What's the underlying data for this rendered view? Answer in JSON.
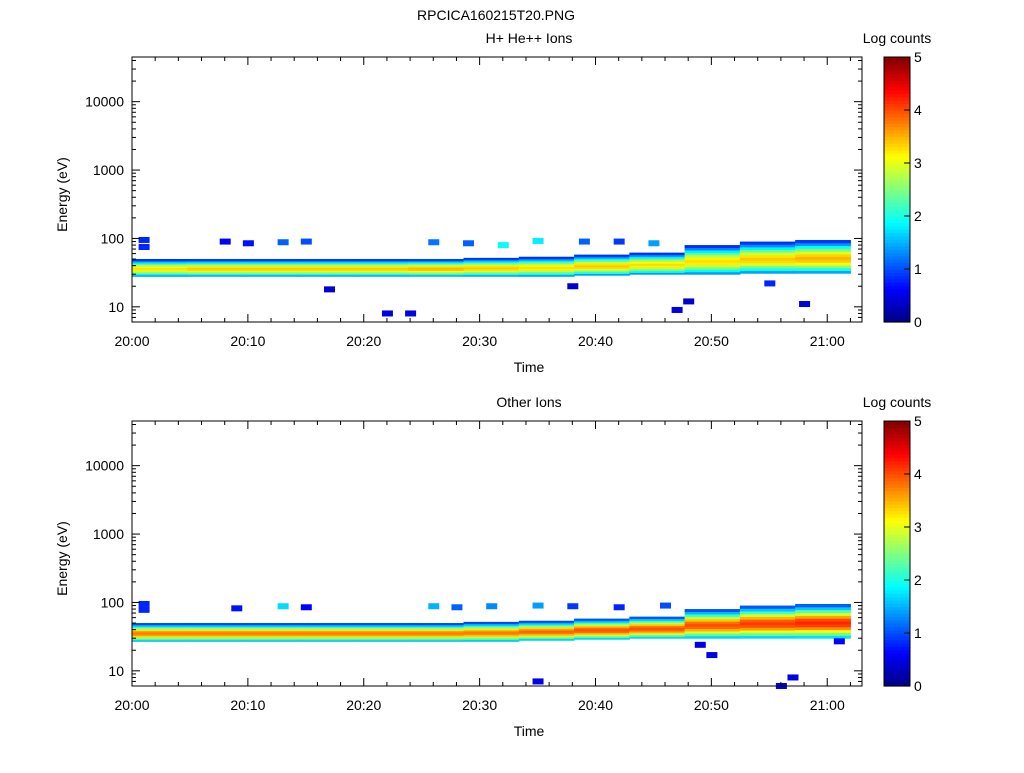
{
  "figure": {
    "title": "RPCICA160215T20.PNG"
  },
  "chart_data": [
    {
      "type": "heatmap",
      "title": "H+ He++ Ions",
      "xlabel": "Time",
      "ylabel": "Energy (eV)",
      "y_scale": "log",
      "ylim": [
        6,
        45000
      ],
      "xlim": [
        "20:00",
        "21:03"
      ],
      "x_ticks": [
        "20:00",
        "20:10",
        "20:20",
        "20:30",
        "20:40",
        "20:50",
        "21:00"
      ],
      "y_ticks": [
        "10",
        "100",
        "1000",
        "10000"
      ],
      "colorbar": {
        "label": "Log counts",
        "ticks": [
          "0",
          "1",
          "2",
          "3",
          "4",
          "5"
        ],
        "range": [
          0,
          5
        ],
        "colormap": "jet"
      },
      "band": {
        "time_start": "20:00",
        "time_end": "21:02",
        "low_eV": [
          28,
          28,
          28,
          28,
          28,
          28,
          28,
          28,
          29,
          30,
          30,
          31,
          31
        ],
        "high_eV": [
          50,
          50,
          50,
          50,
          50,
          50,
          52,
          54,
          58,
          62,
          80,
          90,
          95
        ],
        "peak_log_counts": [
          3.3,
          3.4,
          3.4,
          3.4,
          3.4,
          3.5,
          3.4,
          3.3,
          3.4,
          3.3,
          3.3,
          3.4,
          3.5
        ]
      },
      "sparse_points": [
        {
          "t": "20:01",
          "e": 95,
          "c": 0.8
        },
        {
          "t": "20:01",
          "e": 75,
          "c": 0.8
        },
        {
          "t": "20:08",
          "e": 90,
          "c": 0.6
        },
        {
          "t": "20:10",
          "e": 85,
          "c": 0.7
        },
        {
          "t": "20:13",
          "e": 88,
          "c": 1.1
        },
        {
          "t": "20:15",
          "e": 90,
          "c": 1.0
        },
        {
          "t": "20:17",
          "e": 18,
          "c": 0.4
        },
        {
          "t": "20:22",
          "e": 8,
          "c": 0.5
        },
        {
          "t": "20:24",
          "e": 8,
          "c": 0.5
        },
        {
          "t": "20:26",
          "e": 88,
          "c": 1.2
        },
        {
          "t": "20:29",
          "e": 85,
          "c": 1.1
        },
        {
          "t": "20:32",
          "e": 80,
          "c": 1.9
        },
        {
          "t": "20:35",
          "e": 92,
          "c": 1.8
        },
        {
          "t": "20:38",
          "e": 20,
          "c": 0.4
        },
        {
          "t": "20:39",
          "e": 90,
          "c": 1.1
        },
        {
          "t": "20:42",
          "e": 90,
          "c": 0.9
        },
        {
          "t": "20:45",
          "e": 85,
          "c": 1.4
        },
        {
          "t": "20:47",
          "e": 9,
          "c": 0.5
        },
        {
          "t": "20:48",
          "e": 12,
          "c": 0.4
        },
        {
          "t": "20:55",
          "e": 22,
          "c": 0.8
        },
        {
          "t": "20:58",
          "e": 11,
          "c": 0.5
        }
      ]
    },
    {
      "type": "heatmap",
      "title": "Other Ions",
      "xlabel": "Time",
      "ylabel": "Energy (eV)",
      "y_scale": "log",
      "ylim": [
        6,
        45000
      ],
      "xlim": [
        "20:00",
        "21:03"
      ],
      "x_ticks": [
        "20:00",
        "20:10",
        "20:20",
        "20:30",
        "20:40",
        "20:50",
        "21:00"
      ],
      "y_ticks": [
        "10",
        "100",
        "1000",
        "10000"
      ],
      "colorbar": {
        "label": "Log counts",
        "ticks": [
          "0",
          "1",
          "2",
          "3",
          "4",
          "5"
        ],
        "range": [
          0,
          5
        ],
        "colormap": "jet"
      },
      "band": {
        "time_start": "20:00",
        "time_end": "21:02",
        "low_eV": [
          27,
          27,
          27,
          27,
          27,
          27,
          27,
          28,
          29,
          30,
          30,
          30,
          30
        ],
        "high_eV": [
          50,
          50,
          50,
          50,
          50,
          50,
          52,
          54,
          58,
          62,
          80,
          90,
          95
        ],
        "peak_log_counts": [
          3.8,
          3.8,
          3.8,
          3.8,
          3.8,
          3.8,
          3.8,
          3.9,
          4.0,
          4.0,
          4.0,
          4.1,
          4.2
        ]
      },
      "sparse_points": [
        {
          "t": "20:01",
          "e": 95,
          "c": 0.8
        },
        {
          "t": "20:01",
          "e": 78,
          "c": 0.8
        },
        {
          "t": "20:09",
          "e": 82,
          "c": 0.7
        },
        {
          "t": "20:13",
          "e": 88,
          "c": 1.7
        },
        {
          "t": "20:15",
          "e": 85,
          "c": 0.6
        },
        {
          "t": "20:26",
          "e": 88,
          "c": 1.5
        },
        {
          "t": "20:28",
          "e": 85,
          "c": 1.1
        },
        {
          "t": "20:31",
          "e": 88,
          "c": 1.3
        },
        {
          "t": "20:35",
          "e": 7,
          "c": 0.5
        },
        {
          "t": "20:35",
          "e": 90,
          "c": 1.4
        },
        {
          "t": "20:38",
          "e": 88,
          "c": 0.9
        },
        {
          "t": "20:42",
          "e": 85,
          "c": 0.8
        },
        {
          "t": "20:46",
          "e": 90,
          "c": 1.0
        },
        {
          "t": "20:49",
          "e": 24,
          "c": 0.5
        },
        {
          "t": "20:50",
          "e": 17,
          "c": 0.5
        },
        {
          "t": "20:56",
          "e": 6,
          "c": 0.5
        },
        {
          "t": "20:57",
          "e": 8,
          "c": 0.5
        },
        {
          "t": "21:01",
          "e": 27,
          "c": 0.6
        }
      ]
    }
  ]
}
